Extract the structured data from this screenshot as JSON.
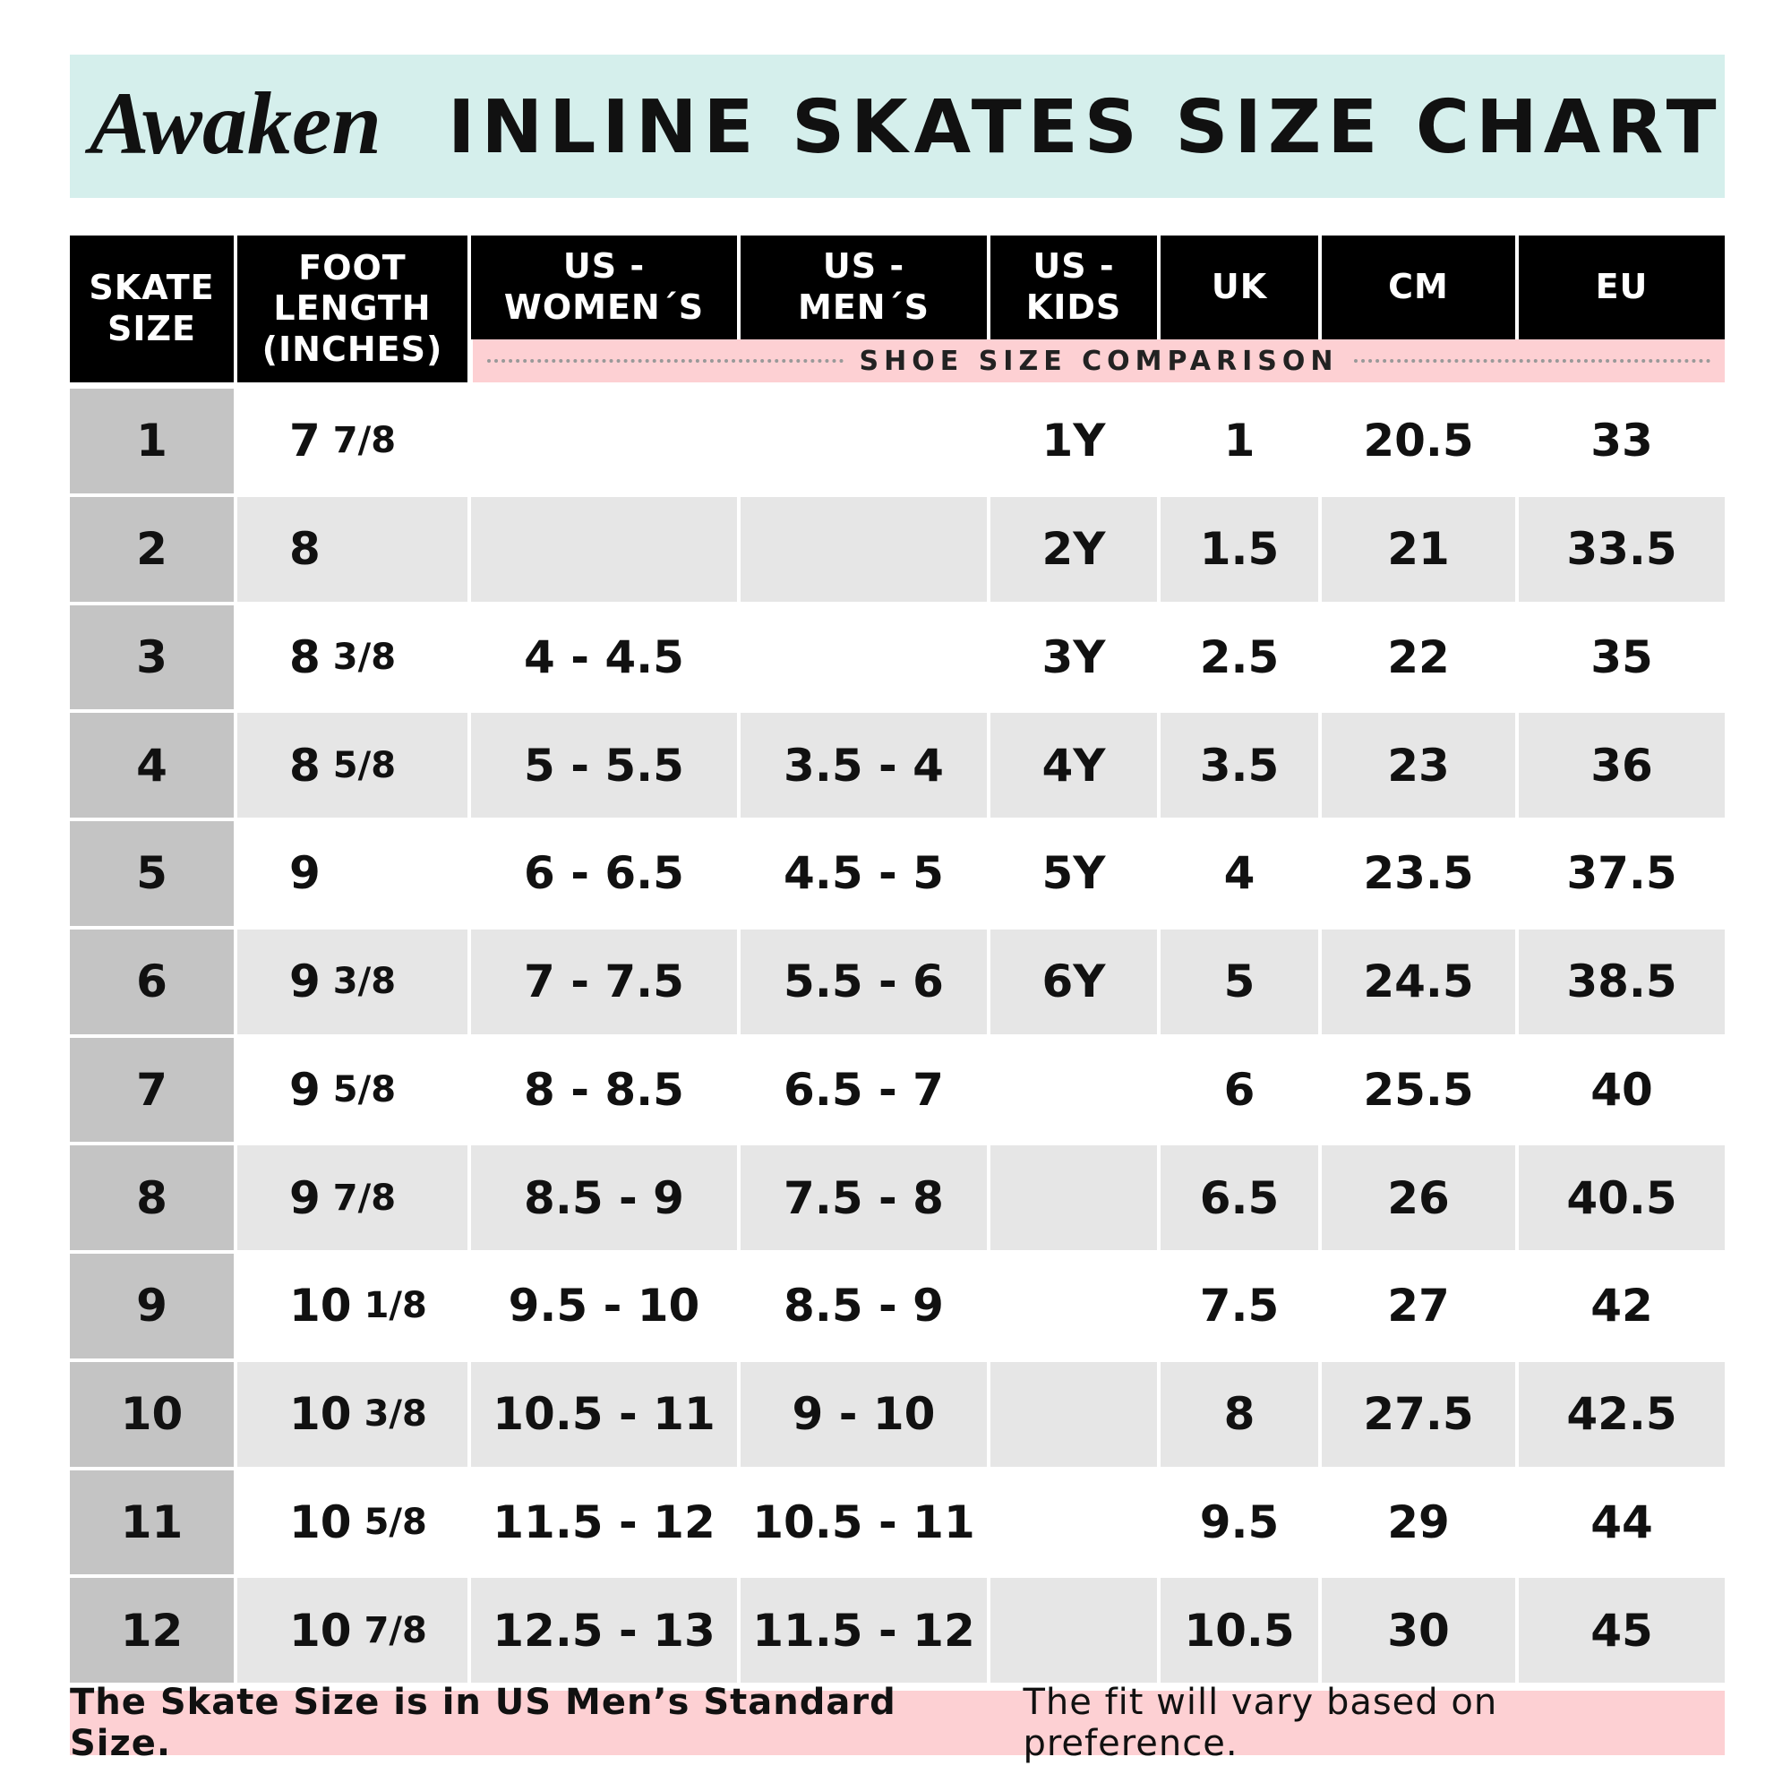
{
  "header": {
    "logo": "Awaken",
    "title": "INLINE SKATES SIZE CHART"
  },
  "table": {
    "columns": [
      "SKATE\nSIZE",
      "FOOT\nLENGTH\n(INCHES)",
      "US -\nWOMEN´S",
      "US -\nMEN´S",
      "US -\nKIDS",
      "UK",
      "CM",
      "EU"
    ],
    "comparison_label": "SHOE SIZE COMPARISON",
    "rows": [
      [
        "1",
        {
          "whole": "7",
          "fraction": "7/8"
        },
        null,
        null,
        "1Y",
        "1",
        "20.5",
        "33"
      ],
      [
        "2",
        {
          "whole": "8"
        },
        null,
        null,
        "2Y",
        "1.5",
        "21",
        "33.5"
      ],
      [
        "3",
        {
          "whole": "8",
          "fraction": "3/8"
        },
        "4 - 4.5",
        null,
        "3Y",
        "2.5",
        "22",
        "35"
      ],
      [
        "4",
        {
          "whole": "8",
          "fraction": "5/8"
        },
        "5 - 5.5",
        "3.5 - 4",
        "4Y",
        "3.5",
        "23",
        "36"
      ],
      [
        "5",
        {
          "whole": "9"
        },
        "6 - 6.5",
        "4.5 - 5",
        "5Y",
        "4",
        "23.5",
        "37.5"
      ],
      [
        "6",
        {
          "whole": "9",
          "fraction": "3/8"
        },
        "7 - 7.5",
        "5.5 - 6",
        "6Y",
        "5",
        "24.5",
        "38.5"
      ],
      [
        "7",
        {
          "whole": "9",
          "fraction": "5/8"
        },
        "8 - 8.5",
        "6.5 - 7",
        null,
        "6",
        "25.5",
        "40"
      ],
      [
        "8",
        {
          "whole": "9",
          "fraction": "7/8"
        },
        "8.5 - 9",
        "7.5 - 8",
        null,
        "6.5",
        "26",
        "40.5"
      ],
      [
        "9",
        {
          "whole": "10",
          "fraction": "1/8"
        },
        "9.5 - 10",
        "8.5 - 9",
        null,
        "7.5",
        "27",
        "42"
      ],
      [
        "10",
        {
          "whole": "10",
          "fraction": "3/8"
        },
        "10.5 - 11",
        "9 - 10",
        null,
        "8",
        "27.5",
        "42.5"
      ],
      [
        "11",
        {
          "whole": "10",
          "fraction": "5/8"
        },
        "11.5 - 12",
        "10.5 - 11",
        null,
        "9.5",
        "29",
        "44"
      ],
      [
        "12",
        {
          "whole": "10",
          "fraction": "7/8"
        },
        "12.5 - 13",
        "11.5 - 12",
        null,
        "10.5",
        "30",
        "45"
      ]
    ]
  },
  "footer": {
    "bold": "The Skate Size is in US Men’s Standard Size.",
    "normal": "The fit will vary based on preference."
  }
}
